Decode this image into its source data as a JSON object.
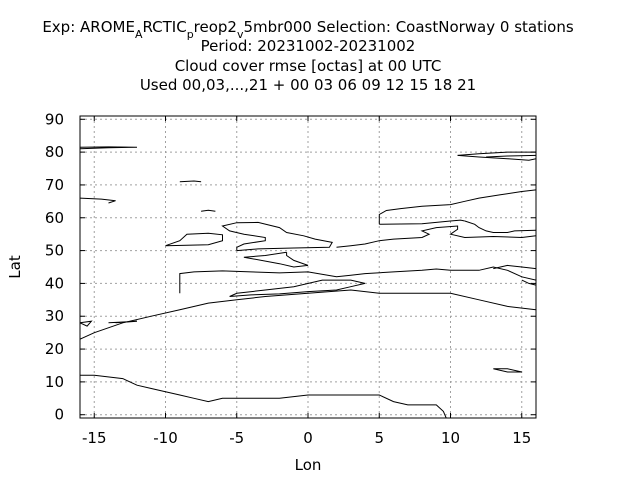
{
  "chart_data": {
    "type": "line",
    "title_lines": [
      "Exp: AROME_ARCTIC_preop2_v5mbr000   Selection: CoastNorway      0 stations",
      "Period: 20231002-20231002",
      "Cloud cover rmse [octas] at  00 UTC",
      "Used  00,03,...,21  + 00 03 06 09 12 15 18 21"
    ],
    "title_parts": {
      "line1": [
        {
          "text": "Exp: AROME",
          "shift": "none"
        },
        {
          "text": "A",
          "shift": "sub"
        },
        {
          "text": "RCTIC",
          "shift": "none"
        },
        {
          "text": "p",
          "shift": "sub"
        },
        {
          "text": "reop2",
          "shift": "none"
        },
        {
          "text": "v",
          "shift": "sub"
        },
        {
          "text": "5mbr000   Selection: CoastNorway      0 stations",
          "shift": "none"
        }
      ]
    },
    "xlabel": "Lon",
    "ylabel": "Lat",
    "xlim": [
      -16,
      16
    ],
    "ylim": [
      -1,
      91
    ],
    "xticks": [
      -15,
      -10,
      -5,
      0,
      5,
      10,
      15
    ],
    "yticks": [
      0,
      10,
      20,
      30,
      40,
      50,
      60,
      70,
      80,
      90
    ],
    "grid": true,
    "series": [
      {
        "values": [
          [
            -16,
            12
          ],
          [
            -15,
            12
          ],
          [
            -13,
            11
          ],
          [
            -12,
            9
          ],
          [
            -11,
            8
          ],
          [
            -10,
            7
          ],
          [
            -9,
            6
          ],
          [
            -8,
            5
          ],
          [
            -7,
            4
          ],
          [
            -6,
            5
          ],
          [
            -4,
            5
          ],
          [
            -2,
            5
          ],
          [
            0,
            6
          ],
          [
            2,
            6
          ],
          [
            5,
            6
          ],
          [
            6,
            4
          ],
          [
            7,
            3
          ],
          [
            8,
            3
          ],
          [
            9,
            3
          ],
          [
            9.5,
            1
          ],
          [
            9.7,
            -1
          ]
        ]
      },
      {
        "values": [
          [
            -16,
            23
          ],
          [
            -15,
            25
          ],
          [
            -13,
            28
          ],
          [
            -11,
            30
          ],
          [
            -9,
            32
          ],
          [
            -7,
            34
          ],
          [
            -5,
            35
          ],
          [
            -3,
            36
          ],
          [
            0,
            37
          ],
          [
            3,
            38
          ],
          [
            5,
            37
          ],
          [
            7,
            37
          ],
          [
            9,
            37
          ],
          [
            10,
            37
          ],
          [
            12,
            35
          ],
          [
            14,
            33
          ],
          [
            16,
            32
          ]
        ]
      },
      {
        "values": [
          [
            -16,
            28
          ],
          [
            -15.5,
            27
          ],
          [
            -15.2,
            28.5
          ],
          [
            -16,
            28
          ]
        ]
      },
      {
        "values": [
          [
            -13.5,
            28
          ],
          [
            -12,
            28.5
          ],
          [
            -14,
            28
          ]
        ]
      },
      {
        "values": [
          [
            -9,
            37
          ],
          [
            -9,
            40
          ],
          [
            -9,
            43
          ],
          [
            -8,
            43.5
          ],
          [
            -6,
            43.8
          ],
          [
            -4,
            43.5
          ],
          [
            -2,
            43.2
          ],
          [
            0,
            43.5
          ],
          [
            2,
            42
          ],
          [
            3,
            42.5
          ],
          [
            4,
            43
          ],
          [
            6,
            43.5
          ],
          [
            8,
            44
          ],
          [
            9,
            44.4
          ],
          [
            10,
            44
          ],
          [
            12,
            44
          ],
          [
            13,
            45
          ],
          [
            14,
            44
          ],
          [
            15,
            42
          ],
          [
            16,
            41
          ]
        ]
      },
      {
        "values": [
          [
            -5.5,
            36
          ],
          [
            -4,
            36.5
          ],
          [
            -2,
            36.8
          ],
          [
            0,
            37.5
          ],
          [
            2,
            38
          ],
          [
            3,
            39
          ],
          [
            4,
            40
          ],
          [
            3,
            41
          ],
          [
            1,
            41
          ],
          [
            -1,
            39
          ],
          [
            -3,
            38
          ],
          [
            -5,
            37
          ],
          [
            -5.5,
            36
          ]
        ]
      },
      {
        "values": [
          [
            -1.5,
            49.5
          ],
          [
            -3,
            48.5
          ],
          [
            -4.5,
            48
          ],
          [
            -2,
            46
          ],
          [
            -1,
            45
          ],
          [
            0,
            45.5
          ],
          [
            -1,
            47
          ],
          [
            -1.5,
            48.5
          ],
          [
            -1.5,
            49.5
          ]
        ]
      },
      {
        "values": [
          [
            -10,
            51.5
          ],
          [
            -9,
            53
          ],
          [
            -8.5,
            55
          ],
          [
            -7,
            55.3
          ],
          [
            -6,
            54.8
          ],
          [
            -6,
            53
          ],
          [
            -7,
            51.8
          ],
          [
            -10,
            51.5
          ]
        ]
      },
      {
        "values": [
          [
            -5,
            50
          ],
          [
            -3.5,
            50.5
          ],
          [
            -1,
            50.8
          ],
          [
            1.5,
            51
          ],
          [
            1.7,
            52.5
          ],
          [
            0.5,
            53.5
          ],
          [
            -0.3,
            54.5
          ],
          [
            -1.5,
            55.5
          ],
          [
            -2,
            57
          ],
          [
            -3.5,
            58.6
          ],
          [
            -5,
            58.5
          ],
          [
            -6,
            57.5
          ],
          [
            -5.5,
            56
          ],
          [
            -4.5,
            55
          ],
          [
            -3,
            54
          ],
          [
            -3,
            53
          ],
          [
            -4.5,
            52
          ],
          [
            -5,
            51
          ],
          [
            -5,
            50
          ]
        ]
      },
      {
        "values": [
          [
            2,
            51
          ],
          [
            3,
            51.5
          ],
          [
            4,
            52
          ],
          [
            5,
            53
          ],
          [
            6,
            53.5
          ],
          [
            8,
            54
          ],
          [
            8.5,
            55
          ],
          [
            8,
            56
          ],
          [
            9,
            57
          ],
          [
            10.5,
            57.5
          ],
          [
            10.5,
            56.5
          ],
          [
            10,
            55
          ],
          [
            11,
            54
          ],
          [
            13,
            54.3
          ],
          [
            15,
            54
          ],
          [
            16,
            54.5
          ]
        ]
      },
      {
        "values": [
          [
            5,
            58
          ],
          [
            5,
            59.5
          ],
          [
            5,
            61
          ],
          [
            5.5,
            62.2
          ],
          [
            6.5,
            62.8
          ],
          [
            8,
            63.5
          ],
          [
            10,
            64
          ],
          [
            11,
            65
          ],
          [
            12,
            66
          ],
          [
            13.5,
            67
          ],
          [
            15,
            68
          ],
          [
            16,
            68.5
          ]
        ]
      },
      {
        "values": [
          [
            5,
            58
          ],
          [
            6.5,
            58.1
          ],
          [
            8,
            58.2
          ],
          [
            10,
            59
          ],
          [
            10.7,
            59.3
          ],
          [
            11,
            59
          ]
        ]
      },
      {
        "values": [
          [
            11,
            59
          ],
          [
            11.7,
            58
          ],
          [
            12,
            57
          ],
          [
            12.5,
            56
          ],
          [
            13,
            55.5
          ],
          [
            14,
            55.5
          ],
          [
            14.5,
            56
          ],
          [
            16,
            56.2
          ]
        ]
      },
      {
        "values": [
          [
            -14,
            64.5
          ],
          [
            -13.5,
            65.2
          ],
          [
            -14.5,
            65.7
          ],
          [
            -16,
            66
          ]
        ]
      },
      {
        "values": [
          [
            -9,
            71
          ],
          [
            -8,
            71.2
          ],
          [
            -7.5,
            71
          ]
        ]
      },
      {
        "values": [
          [
            -7.5,
            62
          ],
          [
            -7,
            62.3
          ],
          [
            -6.5,
            62
          ]
        ]
      },
      {
        "values": [
          [
            -16,
            81
          ],
          [
            -14,
            81.3
          ],
          [
            -12,
            81.5
          ],
          [
            -14,
            81.6
          ],
          [
            -16,
            81.5
          ]
        ]
      },
      {
        "values": [
          [
            10.5,
            79
          ],
          [
            12,
            79.5
          ],
          [
            14,
            80
          ],
          [
            16,
            80
          ]
        ]
      },
      {
        "values": [
          [
            10.5,
            79
          ],
          [
            12,
            78.5
          ],
          [
            14,
            78
          ],
          [
            15.5,
            77.5
          ],
          [
            16,
            78
          ]
        ]
      },
      {
        "values": [
          [
            12.5,
            78.5
          ],
          [
            14,
            78.8
          ],
          [
            16,
            79
          ]
        ]
      },
      {
        "values": [
          [
            13,
            44.5
          ],
          [
            14,
            45.5
          ],
          [
            15,
            45
          ],
          [
            16,
            44.5
          ]
        ]
      },
      {
        "values": [
          [
            15,
            41
          ],
          [
            15.5,
            40
          ],
          [
            16,
            39.5
          ]
        ]
      },
      {
        "values": [
          [
            13,
            14
          ],
          [
            14,
            13
          ],
          [
            15,
            13
          ],
          [
            14,
            14
          ],
          [
            13,
            14
          ]
        ]
      }
    ]
  }
}
